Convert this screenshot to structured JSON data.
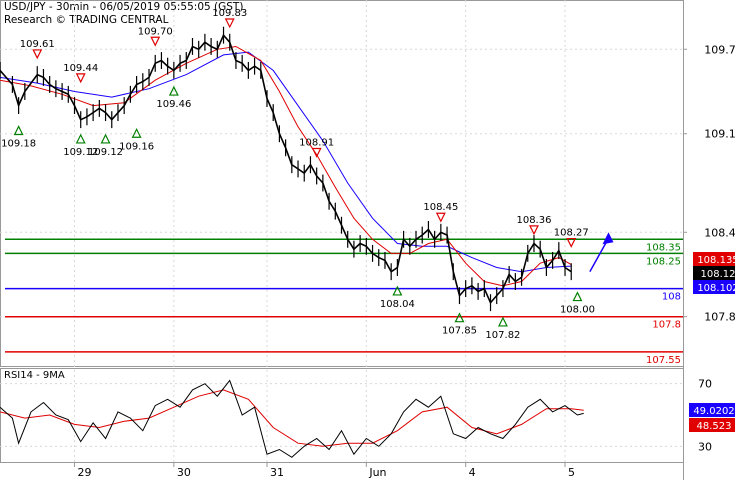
{
  "header": {
    "line1": "USD/JPY - 30min - 06/05/2019 05:55:05 (GST)",
    "line2": "Research © TRADING CENTRAL"
  },
  "chart_data": [
    {
      "type": "line",
      "panel": "price",
      "ylim": [
        107.45,
        110.05
      ],
      "x_range": [
        0,
        110
      ],
      "y_ticks": [
        {
          "value": 109.7,
          "label": "109.7"
        },
        {
          "value": 109.1,
          "label": "109.1"
        },
        {
          "value": 108.4,
          "label": "108.4"
        },
        {
          "value": 107.8,
          "label": "107.8"
        }
      ],
      "x_ticks": [
        {
          "x": 12,
          "label": "29"
        },
        {
          "x": 28,
          "label": "30"
        },
        {
          "x": 43,
          "label": "31"
        },
        {
          "x": 59,
          "label": "Jun"
        },
        {
          "x": 75,
          "label": "4"
        },
        {
          "x": 91,
          "label": "5"
        }
      ],
      "close_series": [
        [
          0,
          109.55
        ],
        [
          2,
          109.45
        ],
        [
          3,
          109.3
        ],
        [
          4,
          109.4
        ],
        [
          6,
          109.52
        ],
        [
          7,
          109.5
        ],
        [
          8,
          109.45
        ],
        [
          9,
          109.42
        ],
        [
          10,
          109.4
        ],
        [
          11,
          109.38
        ],
        [
          12,
          109.3
        ],
        [
          13,
          109.2
        ],
        [
          14,
          109.22
        ],
        [
          15,
          109.25
        ],
        [
          16,
          109.28
        ],
        [
          17,
          109.25
        ],
        [
          18,
          109.2
        ],
        [
          19,
          109.25
        ],
        [
          20,
          109.3
        ],
        [
          21,
          109.38
        ],
        [
          22,
          109.45
        ],
        [
          23,
          109.47
        ],
        [
          24,
          109.5
        ],
        [
          25,
          109.6
        ],
        [
          26,
          109.62
        ],
        [
          27,
          109.58
        ],
        [
          28,
          109.55
        ],
        [
          29,
          109.6
        ],
        [
          30,
          109.62
        ],
        [
          31,
          109.72
        ],
        [
          32,
          109.7
        ],
        [
          33,
          109.75
        ],
        [
          34,
          109.72
        ],
        [
          35,
          109.7
        ],
        [
          36,
          109.8
        ],
        [
          37,
          109.75
        ],
        [
          38,
          109.62
        ],
        [
          39,
          109.6
        ],
        [
          40,
          109.55
        ],
        [
          41,
          109.58
        ],
        [
          42,
          109.55
        ],
        [
          43,
          109.35
        ],
        [
          44,
          109.25
        ],
        [
          45,
          109.1
        ],
        [
          46,
          109.0
        ],
        [
          47,
          108.88
        ],
        [
          48,
          108.85
        ],
        [
          49,
          108.82
        ],
        [
          50,
          108.88
        ],
        [
          51,
          108.8
        ],
        [
          52,
          108.75
        ],
        [
          53,
          108.62
        ],
        [
          54,
          108.55
        ],
        [
          55,
          108.45
        ],
        [
          56,
          108.35
        ],
        [
          57,
          108.28
        ],
        [
          58,
          108.32
        ],
        [
          59,
          108.3
        ],
        [
          60,
          108.25
        ],
        [
          61,
          108.22
        ],
        [
          62,
          108.2
        ],
        [
          63,
          108.12
        ],
        [
          64,
          108.15
        ],
        [
          65,
          108.35
        ],
        [
          66,
          108.3
        ],
        [
          67,
          108.35
        ],
        [
          68,
          108.38
        ],
        [
          69,
          108.42
        ],
        [
          70,
          108.35
        ],
        [
          71,
          108.4
        ],
        [
          72,
          108.38
        ],
        [
          73,
          108.12
        ],
        [
          74,
          107.95
        ],
        [
          75,
          108.0
        ],
        [
          76,
          108.02
        ],
        [
          77,
          107.98
        ],
        [
          78,
          108.0
        ],
        [
          79,
          107.9
        ],
        [
          80,
          107.95
        ],
        [
          81,
          108.0
        ],
        [
          82,
          108.1
        ],
        [
          83,
          108.05
        ],
        [
          84,
          108.08
        ],
        [
          85,
          108.25
        ],
        [
          86,
          108.32
        ],
        [
          87,
          108.28
        ],
        [
          88,
          108.15
        ],
        [
          89,
          108.2
        ],
        [
          90,
          108.27
        ],
        [
          91,
          108.15
        ],
        [
          92,
          108.12
        ]
      ],
      "ma_fast": [
        [
          0,
          109.48
        ],
        [
          5,
          109.44
        ],
        [
          10,
          109.38
        ],
        [
          15,
          109.3
        ],
        [
          20,
          109.32
        ],
        [
          25,
          109.48
        ],
        [
          30,
          109.6
        ],
        [
          35,
          109.7
        ],
        [
          38,
          109.72
        ],
        [
          42,
          109.62
        ],
        [
          45,
          109.4
        ],
        [
          48,
          109.15
        ],
        [
          51,
          108.95
        ],
        [
          54,
          108.72
        ],
        [
          57,
          108.5
        ],
        [
          60,
          108.35
        ],
        [
          63,
          108.25
        ],
        [
          66,
          108.25
        ],
        [
          69,
          108.32
        ],
        [
          72,
          108.35
        ],
        [
          75,
          108.18
        ],
        [
          78,
          108.05
        ],
        [
          81,
          108.02
        ],
        [
          84,
          108.05
        ],
        [
          87,
          108.18
        ],
        [
          90,
          108.22
        ],
        [
          92,
          108.17
        ]
      ],
      "ma_slow": [
        [
          0,
          109.5
        ],
        [
          6,
          109.46
        ],
        [
          12,
          109.4
        ],
        [
          18,
          109.36
        ],
        [
          24,
          109.42
        ],
        [
          30,
          109.52
        ],
        [
          36,
          109.66
        ],
        [
          40,
          109.68
        ],
        [
          44,
          109.55
        ],
        [
          48,
          109.3
        ],
        [
          52,
          109.05
        ],
        [
          56,
          108.75
        ],
        [
          60,
          108.5
        ],
        [
          64,
          108.32
        ],
        [
          68,
          108.3
        ],
        [
          72,
          108.3
        ],
        [
          76,
          108.22
        ],
        [
          80,
          108.15
        ],
        [
          84,
          108.12
        ],
        [
          88,
          108.15
        ],
        [
          92,
          108.16
        ]
      ],
      "levels": [
        {
          "value": 108.35,
          "label": "108.35",
          "color": "#008000"
        },
        {
          "value": 108.25,
          "label": "108.25",
          "color": "#008000"
        },
        {
          "value": 108.0,
          "label": "108",
          "color": "#1a00ff"
        },
        {
          "value": 107.8,
          "label": "107.8",
          "color": "#e00000"
        },
        {
          "value": 107.55,
          "label": "107.55",
          "color": "#e00000"
        }
      ],
      "badges": [
        {
          "value": 108.135,
          "label": "108.135",
          "bg": "#e00000",
          "fg": "#ffffff"
        },
        {
          "value": 108.12,
          "label": "108.12",
          "bg": "#000000",
          "fg": "#ffffff"
        },
        {
          "value": 108.102,
          "label": "108.102",
          "bg": "#1a00ff",
          "fg": "#ffffff"
        }
      ],
      "highs": [
        {
          "x": 6,
          "value": 109.61,
          "label": "109.61"
        },
        {
          "x": 13,
          "value": 109.44,
          "label": "109.44"
        },
        {
          "x": 25,
          "value": 109.7,
          "label": "109.70"
        },
        {
          "x": 37,
          "value": 109.83,
          "label": "109.83"
        },
        {
          "x": 51,
          "value": 108.91,
          "label": "108.91"
        },
        {
          "x": 71,
          "value": 108.45,
          "label": "108.45"
        },
        {
          "x": 86,
          "value": 108.36,
          "label": "108.36"
        },
        {
          "x": 92,
          "value": 108.27,
          "label": "108.27"
        }
      ],
      "lows": [
        {
          "x": 3,
          "value": 109.18,
          "label": "109.18"
        },
        {
          "x": 13,
          "value": 109.12,
          "label": "109.12"
        },
        {
          "x": 17,
          "value": 109.12,
          "label": "109.12"
        },
        {
          "x": 22,
          "value": 109.16,
          "label": "109.16"
        },
        {
          "x": 28,
          "value": 109.46,
          "label": "109.46"
        },
        {
          "x": 64,
          "value": 108.04,
          "label": "108.04"
        },
        {
          "x": 74,
          "value": 107.85,
          "label": "107.85"
        },
        {
          "x": 81,
          "value": 107.82,
          "label": "107.82"
        },
        {
          "x": 93,
          "value": 108.0,
          "label": "108.00"
        }
      ],
      "arrow": {
        "from": [
          95,
          108.12
        ],
        "to": [
          98,
          108.4
        ],
        "color": "#1a00ff"
      }
    },
    {
      "type": "line",
      "panel": "indicator",
      "title": "RSI14 - 9MA",
      "ylim": [
        20,
        80
      ],
      "y_ticks": [
        {
          "value": 70,
          "label": "70"
        },
        {
          "value": 30,
          "label": "30"
        }
      ],
      "rsi": [
        [
          0,
          55
        ],
        [
          2,
          48
        ],
        [
          3,
          32
        ],
        [
          5,
          52
        ],
        [
          7,
          58
        ],
        [
          9,
          50
        ],
        [
          11,
          47
        ],
        [
          13,
          33
        ],
        [
          15,
          45
        ],
        [
          17,
          35
        ],
        [
          19,
          52
        ],
        [
          21,
          48
        ],
        [
          23,
          40
        ],
        [
          25,
          56
        ],
        [
          27,
          60
        ],
        [
          29,
          55
        ],
        [
          31,
          66
        ],
        [
          33,
          70
        ],
        [
          35,
          62
        ],
        [
          37,
          72
        ],
        [
          39,
          50
        ],
        [
          41,
          55
        ],
        [
          43,
          25
        ],
        [
          45,
          28
        ],
        [
          47,
          23
        ],
        [
          49,
          30
        ],
        [
          51,
          35
        ],
        [
          53,
          28
        ],
        [
          55,
          40
        ],
        [
          57,
          25
        ],
        [
          59,
          35
        ],
        [
          61,
          30
        ],
        [
          63,
          38
        ],
        [
          65,
          52
        ],
        [
          67,
          60
        ],
        [
          69,
          55
        ],
        [
          71,
          62
        ],
        [
          73,
          38
        ],
        [
          75,
          35
        ],
        [
          77,
          42
        ],
        [
          79,
          38
        ],
        [
          81,
          35
        ],
        [
          83,
          44
        ],
        [
          85,
          55
        ],
        [
          87,
          60
        ],
        [
          89,
          52
        ],
        [
          91,
          56
        ],
        [
          93,
          50
        ],
        [
          94,
          51
        ]
      ],
      "ma": [
        [
          0,
          52
        ],
        [
          4,
          48
        ],
        [
          8,
          50
        ],
        [
          12,
          44
        ],
        [
          16,
          42
        ],
        [
          20,
          46
        ],
        [
          24,
          48
        ],
        [
          28,
          55
        ],
        [
          32,
          62
        ],
        [
          36,
          66
        ],
        [
          40,
          60
        ],
        [
          44,
          42
        ],
        [
          48,
          32
        ],
        [
          52,
          30
        ],
        [
          56,
          32
        ],
        [
          60,
          32
        ],
        [
          64,
          40
        ],
        [
          68,
          52
        ],
        [
          72,
          55
        ],
        [
          76,
          42
        ],
        [
          80,
          38
        ],
        [
          84,
          44
        ],
        [
          88,
          54
        ],
        [
          92,
          54
        ],
        [
          94,
          53
        ]
      ],
      "badges": [
        {
          "value": 49.0202,
          "label": "49.0202",
          "bg": "#1a00ff",
          "fg": "#ffffff"
        },
        {
          "value": 48.523,
          "label": "48.523",
          "bg": "#e00000",
          "fg": "#ffffff"
        }
      ]
    }
  ],
  "colors": {
    "price": "#000000",
    "ma_fast": "#e00000",
    "ma_slow": "#1a00ff",
    "high_marker": "#e00000",
    "low_marker": "#008000",
    "grid": "#d8d8d8",
    "rsi": "#000000",
    "rsi_ma": "#e00000"
  }
}
